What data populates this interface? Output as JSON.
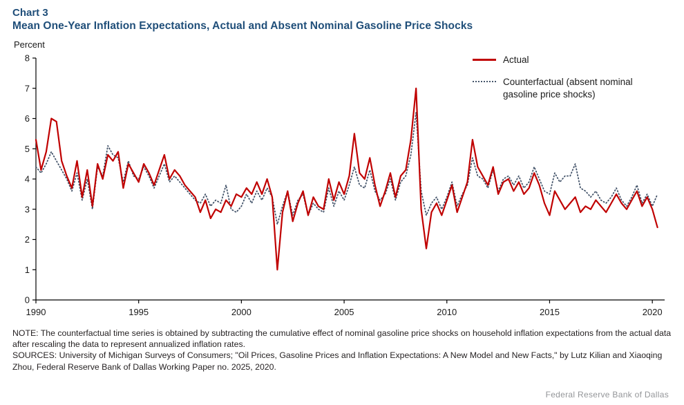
{
  "header": {
    "chart_number": "Chart 3",
    "title": "Mean One-Year Inflation Expectations, Actual and Absent Nominal Gasoline Price Shocks"
  },
  "axis": {
    "unit_label": "Percent"
  },
  "legend": {
    "actual_label": "Actual",
    "counterfactual_label": "Counterfactual (absent nominal gasoline price shocks)"
  },
  "notes": {
    "note": "NOTE: The counterfactual time series is obtained by subtracting the cumulative effect of nominal gasoline price shocks on household inflation expectations from the actual data after rescaling the data to represent annualized inflation rates.",
    "sources": "SOURCES: University of Michigan Surveys of Consumers; \"Oil Prices, Gasoline Prices and Inflation Expectations: A New Model and New Facts,\" by Lutz Kilian and Xiaoqing Zhou, Federal Reserve Bank of Dallas Working Paper no. 2025, 2020."
  },
  "footer": {
    "branding": "Federal Reserve Bank of Dallas"
  },
  "colors": {
    "title_blue": "#1f4e79",
    "actual_red": "#c00000",
    "counterfactual_navy": "#44546a",
    "axis_black": "#000000",
    "footer_gray": "#939598"
  },
  "chart_data": {
    "type": "line",
    "title": "Mean One-Year Inflation Expectations, Actual and Absent Nominal Gasoline Price Shocks",
    "xlabel": "",
    "ylabel": "Percent",
    "ylim": [
      0,
      8
    ],
    "xlim": [
      1990,
      2020.6
    ],
    "y_ticks": [
      0,
      1,
      2,
      3,
      4,
      5,
      6,
      7,
      8
    ],
    "x_ticks": [
      1990,
      1995,
      2000,
      2005,
      2010,
      2015,
      2020
    ],
    "grid": false,
    "legend_position": "top-right-inside",
    "x_start": 1990,
    "x_step": 0.25,
    "series": [
      {
        "name": "Actual",
        "style": "solid",
        "color": "#c00000",
        "values": [
          5.3,
          4.3,
          4.9,
          6.0,
          5.9,
          4.6,
          4.1,
          3.7,
          4.6,
          3.4,
          4.3,
          3.1,
          4.5,
          4.0,
          4.8,
          4.6,
          4.9,
          3.7,
          4.5,
          4.2,
          3.9,
          4.5,
          4.2,
          3.8,
          4.3,
          4.8,
          4.0,
          4.3,
          4.1,
          3.8,
          3.6,
          3.4,
          2.9,
          3.3,
          2.7,
          3.0,
          2.9,
          3.3,
          3.1,
          3.5,
          3.4,
          3.7,
          3.5,
          3.9,
          3.5,
          4.0,
          3.4,
          1.0,
          2.9,
          3.6,
          2.6,
          3.2,
          3.6,
          2.8,
          3.4,
          3.1,
          3.0,
          4.0,
          3.3,
          3.9,
          3.5,
          4.1,
          5.5,
          4.2,
          4.0,
          4.7,
          3.8,
          3.1,
          3.6,
          4.2,
          3.4,
          4.1,
          4.3,
          5.3,
          7.0,
          3.0,
          1.7,
          2.9,
          3.2,
          2.8,
          3.3,
          3.8,
          2.9,
          3.4,
          3.9,
          5.3,
          4.4,
          4.1,
          3.8,
          4.4,
          3.5,
          3.9,
          4.0,
          3.6,
          3.9,
          3.5,
          3.7,
          4.2,
          3.8,
          3.2,
          2.8,
          3.6,
          3.3,
          3.0,
          3.2,
          3.4,
          2.9,
          3.1,
          3.0,
          3.3,
          3.1,
          2.9,
          3.2,
          3.5,
          3.2,
          3.0,
          3.3,
          3.6,
          3.1,
          3.4,
          3.0,
          2.4
        ]
      },
      {
        "name": "Counterfactual (absent nominal gasoline price shocks)",
        "style": "dotted",
        "color": "#44546a",
        "values": [
          4.4,
          4.2,
          4.5,
          4.9,
          4.6,
          4.3,
          4.0,
          3.6,
          4.2,
          3.3,
          4.0,
          3.0,
          4.4,
          4.1,
          5.1,
          4.8,
          4.7,
          3.9,
          4.6,
          4.1,
          4.0,
          4.4,
          4.1,
          3.7,
          4.1,
          4.5,
          3.9,
          4.1,
          3.9,
          3.7,
          3.5,
          3.3,
          3.2,
          3.5,
          3.1,
          3.3,
          3.2,
          3.8,
          3.0,
          2.9,
          3.1,
          3.5,
          3.2,
          3.6,
          3.3,
          3.7,
          3.4,
          2.5,
          3.1,
          3.6,
          2.8,
          3.3,
          3.5,
          2.8,
          3.2,
          3.0,
          2.9,
          3.7,
          3.1,
          3.6,
          3.3,
          3.8,
          4.4,
          3.8,
          3.7,
          4.3,
          3.6,
          3.3,
          3.5,
          4.0,
          3.3,
          3.9,
          4.1,
          4.8,
          6.2,
          3.6,
          2.8,
          3.2,
          3.4,
          3.0,
          3.4,
          3.9,
          3.1,
          3.5,
          3.8,
          4.7,
          4.1,
          4.0,
          3.7,
          4.3,
          3.6,
          4.0,
          4.1,
          3.8,
          4.1,
          3.7,
          3.9,
          4.4,
          4.0,
          3.6,
          3.5,
          4.2,
          3.9,
          4.1,
          4.1,
          4.5,
          3.7,
          3.6,
          3.4,
          3.6,
          3.3,
          3.2,
          3.4,
          3.7,
          3.3,
          3.1,
          3.4,
          3.8,
          3.2,
          3.5,
          3.1,
          3.5
        ]
      }
    ]
  }
}
